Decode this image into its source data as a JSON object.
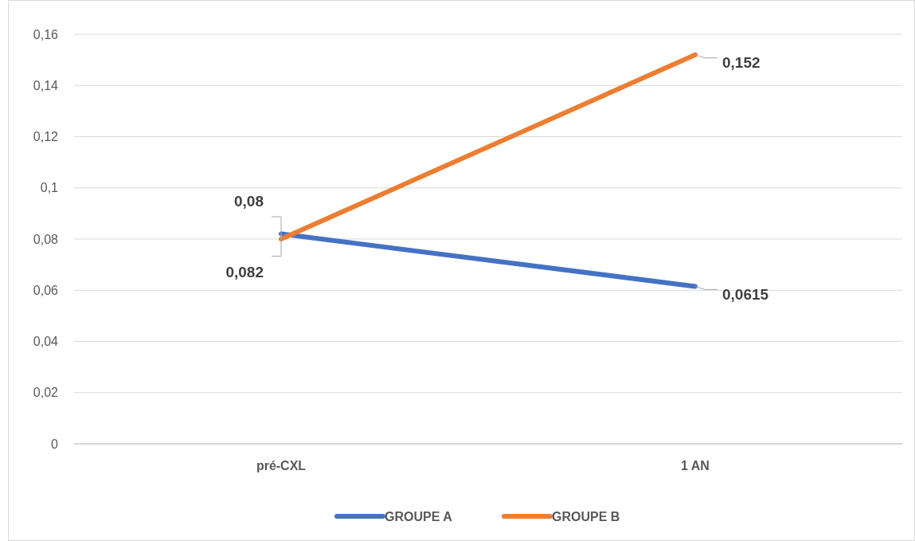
{
  "chart_data": {
    "type": "line",
    "categories": [
      "pré-CXL",
      "1 AN"
    ],
    "series": [
      {
        "name": "GROUPE A",
        "color": "#4472c4",
        "values": [
          0.082,
          0.0615
        ],
        "value_labels": [
          "0,082",
          "0,0615"
        ]
      },
      {
        "name": "GROUPE B",
        "color": "#ed7d31",
        "values": [
          0.08,
          0.152
        ],
        "value_labels": [
          "0,08",
          "0,152"
        ]
      }
    ],
    "ylim": [
      0,
      0.16
    ],
    "yticks": [
      0,
      {
        "value": 0.02,
        "label": "0,02"
      },
      {
        "value": 0.04,
        "label": "0,04"
      },
      {
        "value": 0.06,
        "label": "0,06"
      },
      {
        "value": 0.08,
        "label": "0,08"
      },
      {
        "value": 0.1,
        "label": "0,1"
      },
      {
        "value": 0.12,
        "label": "0,12"
      },
      {
        "value": 0.14,
        "label": "0,14"
      },
      {
        "value": 0.16,
        "label": "0,16"
      }
    ],
    "grid": "y",
    "legend": "bottom",
    "marker": "none",
    "line_style": "solid"
  }
}
